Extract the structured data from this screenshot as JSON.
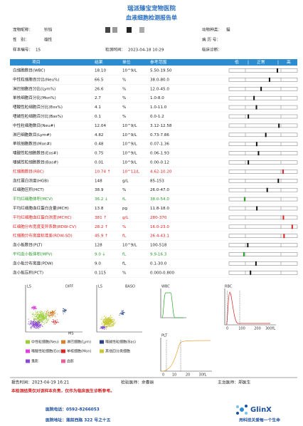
{
  "header": {
    "hospital": "瑞派臻宝宠物医院",
    "title": "血液细胞检测报告单"
  },
  "info": [
    {
      "label": "宠物昵称：",
      "value": "铃铛"
    },
    {
      "label": "动物种类：",
      "value": "猫"
    },
    {
      "label": "性　别：",
      "value": "雄性"
    },
    {
      "label": "病 历 号："
    },
    {
      "label": "样本编号：",
      "value": "15"
    },
    {
      "label": "检测时间：",
      "value": "2023-04-18 10:29"
    },
    {
      "label": "临床诊断："
    }
  ],
  "table": {
    "columns": [
      "项目",
      "结果",
      "单位",
      "参考范围"
    ],
    "scale": [
      "低",
      "正常",
      "高"
    ],
    "rows": [
      [
        "白细胞数目(WBC)",
        "18.10",
        "10^9/L",
        "5.50-19.50"
      ],
      [
        "中性粒细胞百分比(Neu%)",
        "66.5",
        "%",
        "38.0-80.0"
      ],
      [
        "淋巴细胞百分比(Lym%)",
        "26.6",
        "%",
        "12.0-45.0"
      ],
      [
        "单核细胞百分比(Mon%)",
        "2.7",
        "%",
        "1.0-8.0"
      ],
      [
        "嗜酸性粒细胞百分比(Eos%)",
        "4.1",
        "%",
        "1.0-11.0"
      ],
      [
        "嗜碱性粒细胞百分比(Bas%)",
        "0.1",
        "%",
        "0.0-1.2"
      ],
      [
        "中性粒细胞数目(Neu#)",
        "12.04",
        "10^9/L",
        "3.12-12.58"
      ],
      [
        "淋巴细胞数目(Lym#)",
        "4.82",
        "10^9/L",
        "0.73-7.86"
      ],
      [
        "单核细胞数目(Mon#)",
        "0.48",
        "10^9/L",
        "0.07-1.36"
      ],
      [
        "嗜酸性粒细胞数目(Eos#)",
        "0.75",
        "10^9/L",
        "0.06-1.93"
      ],
      [
        "嗜碱性粒细胞数目(Bas#)",
        "0.01",
        "10^9/L",
        "0.00-0.12"
      ],
      [
        "红细胞数目(RBC)",
        "10.74 ↑",
        "10^12/L",
        "4.62-10.20"
      ],
      [
        "血红蛋白浓度(HGB)",
        "148",
        "g/L",
        "85-153"
      ],
      [
        "红细胞压积(HCT)",
        "38.9",
        "%",
        "26.0-47.0"
      ],
      [
        "平均红细胞体积(MCV)",
        "36.2 ↓",
        "fL",
        "38.0-54.0"
      ],
      [
        "平均红细胞血红蛋白含量(MCH)",
        "13.8",
        "pg",
        "11.8-18.0"
      ],
      [
        "平均红细胞血红蛋白浓度(MCHC)",
        "381 ↑",
        "g/L",
        "280-370"
      ],
      [
        "红细胞分布宽度变异系数(RDW-CV)",
        "28.2 ↑",
        "%",
        "16.0-23.0"
      ],
      [
        "红细胞分布宽度标准差(RDW-SD)",
        "45.9 ↑",
        "fL",
        "26.4-43.1"
      ],
      [
        "血小板数目(PLT)",
        "128",
        "10^9/L",
        "100-518"
      ],
      [
        "平均血小板体积(MPV)",
        "9.0 ↓",
        "fL",
        "9.9-16.3"
      ],
      [
        "血小板分布宽度(PDW)",
        "9.0",
        "fL",
        "0.1-30.0"
      ],
      [
        "血小板压积(PCT)",
        "0.115",
        "%",
        "0.000-0.800"
      ]
    ]
  },
  "charts": {
    "diff": {
      "y_label": "LS",
      "title": "DIFF",
      "x_label": "MS"
    },
    "baso": {
      "y_label": "LS",
      "title": "BASO"
    },
    "wbc": {
      "title": "WBC"
    },
    "rbc": {
      "title": "RBC",
      "ticks": [
        "0",
        "100",
        "200",
        "300fL"
      ]
    },
    "plt": {
      "title": "PLT",
      "ticks": [
        "0",
        "10",
        "20",
        "30fL"
      ]
    },
    "legend": [
      {
        "label": "中性粒细胞(Neu)",
        "color": "#9ccc3a"
      },
      {
        "label": "淋巴细胞(Lym)",
        "color": "#d9822b"
      },
      {
        "label": "嗜碱性粒细胞(Bas)",
        "color": "#27408b"
      },
      {
        "label": "嗜酸性粒细胞(Eos)",
        "color": "#e040e0"
      },
      {
        "label": "单核细胞(Mon)",
        "color": "#d42a2a"
      },
      {
        "label": "其他四分类细胞",
        "color": "#c8c83a"
      },
      {
        "label": "鬼影",
        "color": "#8a4bd0"
      },
      {
        "label": "血影",
        "color": "#e8609a"
      }
    ]
  },
  "footer": {
    "report_time": "报告时间：2023-04-19 16:21",
    "doctor": "检验医师：余春辰",
    "attending": "主治医师：郑医生",
    "note": "本检测结果仅对该样本负责，仅作为临床医生诊断参考。",
    "phone": "医院电话：0592-8266053",
    "address": "医院地址：莲前西路 322 号之十五",
    "brand": "GlinX",
    "slogan": "用科技关爱每一个生命"
  }
}
